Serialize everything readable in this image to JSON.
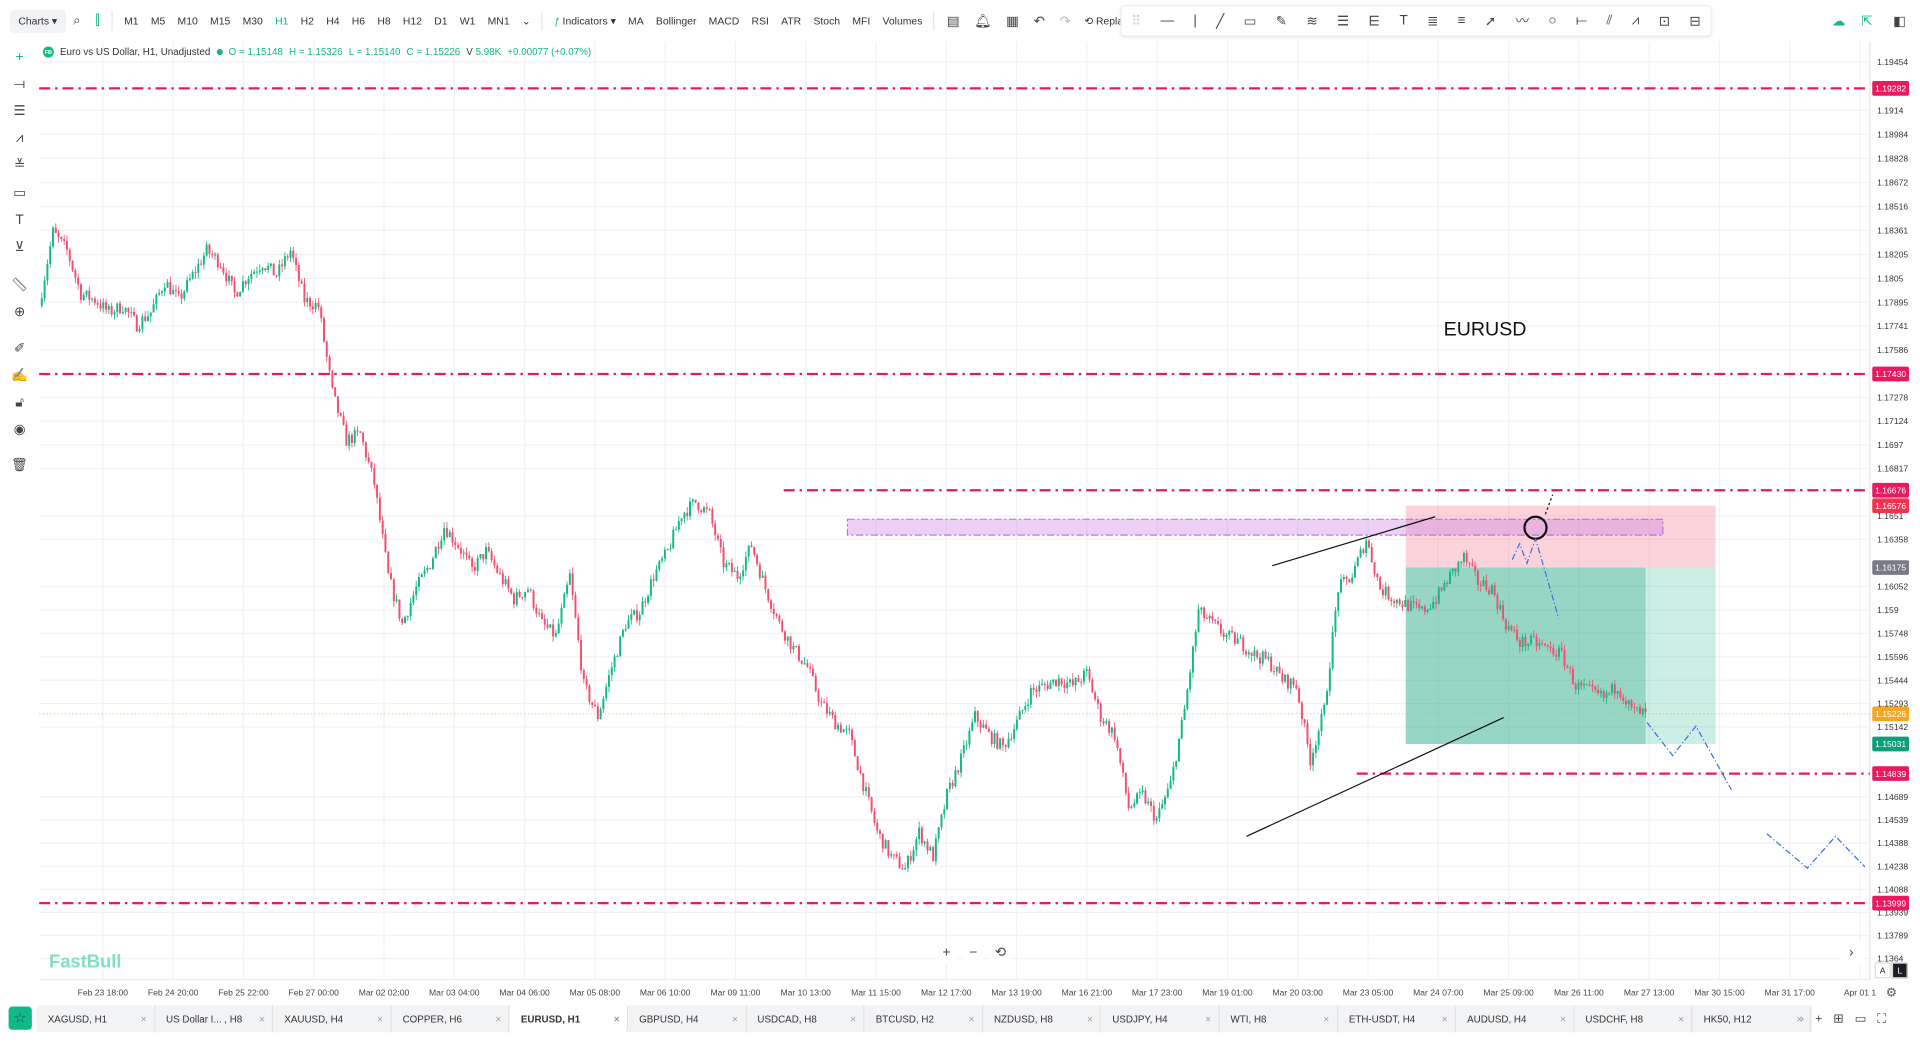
{
  "topbar": {
    "charts": "Charts ▾",
    "timeframes": [
      "M1",
      "M5",
      "M10",
      "M15",
      "M30",
      "H1",
      "H2",
      "H4",
      "H6",
      "H8",
      "H12",
      "D1",
      "W1",
      "MN1"
    ],
    "active_tf": "H1",
    "indicators": "Indicators ▾",
    "quick_indicators": [
      "MA",
      "Bollinger",
      "MACD",
      "RSI",
      "ATR",
      "Stoch",
      "MFI",
      "Volumes"
    ],
    "replay": "Replay"
  },
  "legend": {
    "badge": "FB",
    "symbol": "Euro vs US Dollar, H1, Unadjusted",
    "o": "O = 1.15148",
    "h": "H = 1.15326",
    "l": "L = 1.15140",
    "c": "C = 1.15226",
    "vlabel": "V",
    "v": "5.98K",
    "change": "+0.00077 (+0.07%)"
  },
  "watermark": "FastBull",
  "annotation": "EURUSD",
  "colors": {
    "up": "#12b886",
    "down": "#f0506e",
    "level": "#e8195f",
    "accent": "#12b886"
  },
  "chart_data": {
    "type": "candlestick",
    "symbol": "EURUSD",
    "timeframe": "H1",
    "price_ticks": [
      1.19454,
      1.1914,
      1.18984,
      1.18828,
      1.18672,
      1.18516,
      1.18361,
      1.18205,
      1.1805,
      1.17895,
      1.17741,
      1.17586,
      1.17278,
      1.17124,
      1.1697,
      1.16817,
      1.1651,
      1.16358,
      1.16052,
      1.159,
      1.15748,
      1.15596,
      1.15444,
      1.15293,
      1.15142,
      1.14689,
      1.14539,
      1.14388,
      1.14238,
      1.14088,
      1.13939,
      1.13789,
      1.1364
    ],
    "time_ticks": [
      "Feb 23 18:00",
      "Feb 24 20:00",
      "Feb 25 22:00",
      "Feb 27 00:00",
      "Mar 02 02:00",
      "Mar 03 04:00",
      "Mar 04 06:00",
      "Mar 05 08:00",
      "Mar 06 10:00",
      "Mar 09 11:00",
      "Mar 10 13:00",
      "Mar 11 15:00",
      "Mar 12 17:00",
      "Mar 13 19:00",
      "Mar 16 21:00",
      "Mar 17 23:00",
      "Mar 19 01:00",
      "Mar 20 03:00",
      "Mar 23 05:00",
      "Mar 24 07:00",
      "Mar 25 09:00",
      "Mar 26 11:00",
      "Mar 27 13:00",
      "Mar 30 15:00",
      "Mar 31 17:00",
      "Apr 01 1"
    ],
    "approx_close_path": [
      1.1787,
      1.1835,
      1.1823,
      1.1795,
      1.1791,
      1.1783,
      1.1787,
      1.1775,
      1.1783,
      1.1803,
      1.1791,
      1.1807,
      1.1823,
      1.1815,
      1.1795,
      1.1807,
      1.1815,
      1.1807,
      1.1823,
      1.1791,
      1.1787,
      1.1731,
      1.17,
      1.1704,
      1.1672,
      1.1612,
      1.1581,
      1.1604,
      1.162,
      1.1644,
      1.1632,
      1.1616,
      1.1628,
      1.1612,
      1.1597,
      1.1604,
      1.1581,
      1.1573,
      1.1612,
      1.1541,
      1.1521,
      1.1553,
      1.1581,
      1.1589,
      1.1612,
      1.1628,
      1.1652,
      1.166,
      1.1652,
      1.162,
      1.1612,
      1.1632,
      1.1604,
      1.1581,
      1.1565,
      1.1553,
      1.1529,
      1.1517,
      1.1509,
      1.1477,
      1.1446,
      1.143,
      1.1422,
      1.1446,
      1.143,
      1.147,
      1.1493,
      1.1521,
      1.1509,
      1.1501,
      1.1517,
      1.1537,
      1.1541,
      1.1545,
      1.1541,
      1.1549,
      1.1521,
      1.1509,
      1.1462,
      1.147,
      1.1454,
      1.1477,
      1.1525,
      1.1589,
      1.1581,
      1.1573,
      1.1569,
      1.1561,
      1.1557,
      1.1545,
      1.1541,
      1.1493,
      1.1525,
      1.1604,
      1.1612,
      1.1636,
      1.1604,
      1.1597,
      1.1593,
      1.1589,
      1.1597,
      1.1612,
      1.1624,
      1.1608,
      1.1604,
      1.1581,
      1.1569,
      1.1569,
      1.1565,
      1.1561,
      1.1541,
      1.1537,
      1.1533,
      1.1541,
      1.1525,
      1.1522
    ],
    "levels": [
      1.19282,
      1.1743,
      1.16676,
      1.14839,
      1.13999
    ],
    "price_labels": [
      {
        "v": "1.19282",
        "c": "#e8195f"
      },
      {
        "v": "1.17430",
        "c": "#e8195f"
      },
      {
        "v": "1.16676",
        "c": "#e8195f"
      },
      {
        "v": "1.16576",
        "c": "#f0334f"
      },
      {
        "v": "1.16175",
        "c": "#787b86"
      },
      {
        "v": "1.15226",
        "c": "#f5a623"
      },
      {
        "v": "1.15031",
        "c": "#0e9f7a"
      },
      {
        "v": "1.14839",
        "c": "#e8195f"
      },
      {
        "v": "1.13999",
        "c": "#e8195f"
      }
    ],
    "last_price": 1.15226,
    "position": {
      "stop": 1.16576,
      "entry": 1.16175,
      "target": 1.15031
    },
    "supply_zone": [
      1.1651,
      1.16358
    ]
  },
  "tabs": [
    {
      "label": "XAGUSD, H1"
    },
    {
      "label": "US Dollar I... , H8"
    },
    {
      "label": "XAUUSD, H4"
    },
    {
      "label": "COPPER, H6"
    },
    {
      "label": "EURUSD, H1",
      "active": true
    },
    {
      "label": "GBPUSD, H4"
    },
    {
      "label": "USDCAD, H8"
    },
    {
      "label": "BTCUSD, H2"
    },
    {
      "label": "NZDUSD, H8"
    },
    {
      "label": "USDJPY, H4"
    },
    {
      "label": "WTI, H8"
    },
    {
      "label": "ETH-USDT, H4"
    },
    {
      "label": "AUDUSD, H4"
    },
    {
      "label": "USDCHF, H8"
    },
    {
      "label": "HK50, H12"
    }
  ],
  "tab_close": "×",
  "axis_mode": {
    "auto": "A",
    "log": "L"
  }
}
